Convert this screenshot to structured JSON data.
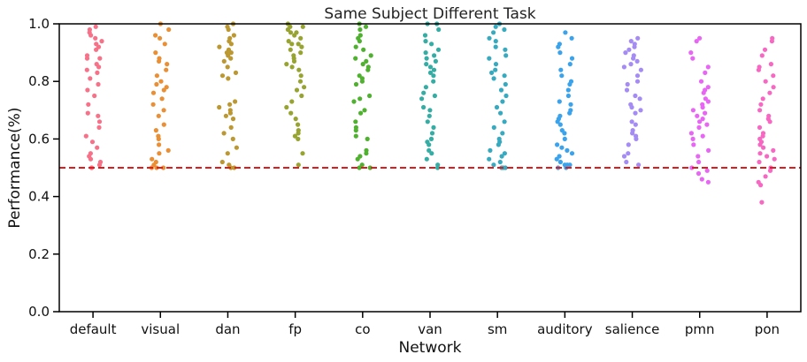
{
  "chart_data": {
    "type": "scatter",
    "title": "Same Subject Different Task",
    "xlabel": "Network",
    "ylabel": "Performance(%)",
    "ylim": [
      0.0,
      1.0
    ],
    "yticks": [
      "0.0",
      "0.2",
      "0.4",
      "0.6",
      "0.8",
      "1.0"
    ],
    "grid": false,
    "reference_line": {
      "y": 0.5,
      "color": "#e31a1c",
      "style": "dashed"
    },
    "categories": [
      "default",
      "visual",
      "dan",
      "fp",
      "co",
      "van",
      "sm",
      "auditory",
      "salience",
      "pmn",
      "pon"
    ],
    "colors": [
      "#f77189",
      "#e98f36",
      "#bb9832",
      "#97a431",
      "#50b131",
      "#36ada4",
      "#38aabf",
      "#3ba3ec",
      "#a48cf4",
      "#e866f4",
      "#f668c2"
    ],
    "series": [
      {
        "values": [
          0.99,
          0.97,
          0.95,
          0.94,
          0.93,
          0.91,
          0.89,
          0.88,
          0.86,
          0.85,
          0.83,
          0.81,
          0.79,
          0.77,
          0.75,
          0.72,
          0.69,
          0.68,
          0.66,
          0.64,
          0.61,
          0.59,
          0.57,
          0.55,
          0.54,
          0.53,
          0.52,
          0.51,
          0.5,
          0.5,
          0.92,
          0.88,
          0.84,
          0.98,
          0.96
        ]
      },
      {
        "values": [
          1.0,
          0.98,
          0.95,
          0.93,
          0.9,
          0.88,
          0.86,
          0.84,
          0.82,
          0.8,
          0.78,
          0.77,
          0.76,
          0.74,
          0.72,
          0.7,
          0.68,
          0.65,
          0.63,
          0.61,
          0.6,
          0.58,
          0.56,
          0.55,
          0.53,
          0.52,
          0.51,
          0.5,
          0.5,
          0.5,
          0.79,
          0.87,
          0.96
        ]
      },
      {
        "values": [
          1.0,
          0.99,
          0.98,
          0.96,
          0.95,
          0.93,
          0.92,
          0.91,
          0.9,
          0.89,
          0.88,
          0.87,
          0.85,
          0.83,
          0.82,
          0.81,
          0.73,
          0.72,
          0.71,
          0.7,
          0.69,
          0.68,
          0.67,
          0.64,
          0.62,
          0.6,
          0.57,
          0.55,
          0.52,
          0.51,
          0.5,
          0.5,
          0.94,
          0.9
        ]
      },
      {
        "values": [
          1.0,
          0.99,
          0.98,
          0.97,
          0.96,
          0.95,
          0.93,
          0.92,
          0.91,
          0.9,
          0.89,
          0.88,
          0.86,
          0.85,
          0.84,
          0.82,
          0.8,
          0.78,
          0.77,
          0.75,
          0.73,
          0.71,
          0.69,
          0.67,
          0.65,
          0.63,
          0.62,
          0.61,
          0.6,
          0.55,
          0.51,
          0.94,
          0.97,
          0.99,
          0.93,
          0.87
        ]
      },
      {
        "values": [
          1.0,
          0.99,
          0.98,
          0.96,
          0.95,
          0.94,
          0.92,
          0.91,
          0.89,
          0.87,
          0.86,
          0.85,
          0.84,
          0.82,
          0.81,
          0.8,
          0.79,
          0.75,
          0.74,
          0.73,
          0.7,
          0.69,
          0.66,
          0.64,
          0.63,
          0.61,
          0.6,
          0.56,
          0.55,
          0.54,
          0.53,
          0.51,
          0.5,
          0.5,
          0.88
        ]
      },
      {
        "values": [
          1.0,
          1.0,
          0.98,
          0.96,
          0.94,
          0.93,
          0.91,
          0.9,
          0.89,
          0.88,
          0.87,
          0.86,
          0.85,
          0.84,
          0.83,
          0.82,
          0.8,
          0.78,
          0.76,
          0.75,
          0.74,
          0.71,
          0.7,
          0.68,
          0.66,
          0.64,
          0.62,
          0.6,
          0.59,
          0.58,
          0.56,
          0.55,
          0.53,
          0.51,
          0.5
        ]
      },
      {
        "values": [
          1.0,
          0.99,
          0.98,
          0.97,
          0.95,
          0.94,
          0.92,
          0.91,
          0.89,
          0.88,
          0.86,
          0.84,
          0.83,
          0.82,
          0.81,
          0.79,
          0.77,
          0.75,
          0.73,
          0.71,
          0.69,
          0.66,
          0.64,
          0.62,
          0.6,
          0.59,
          0.58,
          0.56,
          0.55,
          0.54,
          0.53,
          0.52,
          0.51,
          0.5,
          0.5,
          0.5
        ]
      },
      {
        "values": [
          0.97,
          0.95,
          0.93,
          0.92,
          0.9,
          0.88,
          0.86,
          0.84,
          0.82,
          0.8,
          0.79,
          0.77,
          0.75,
          0.73,
          0.72,
          0.7,
          0.69,
          0.68,
          0.67,
          0.66,
          0.65,
          0.63,
          0.62,
          0.6,
          0.58,
          0.57,
          0.56,
          0.55,
          0.54,
          0.53,
          0.52,
          0.51,
          0.51,
          0.51,
          0.5,
          0.5
        ]
      },
      {
        "values": [
          0.95,
          0.94,
          0.93,
          0.92,
          0.91,
          0.9,
          0.89,
          0.88,
          0.87,
          0.86,
          0.85,
          0.84,
          0.82,
          0.8,
          0.79,
          0.77,
          0.75,
          0.74,
          0.72,
          0.71,
          0.7,
          0.69,
          0.66,
          0.65,
          0.63,
          0.62,
          0.61,
          0.6,
          0.58,
          0.55,
          0.54,
          0.52,
          0.51
        ]
      },
      {
        "values": [
          0.95,
          0.94,
          0.9,
          0.88,
          0.85,
          0.83,
          0.8,
          0.78,
          0.77,
          0.76,
          0.74,
          0.73,
          0.72,
          0.71,
          0.7,
          0.69,
          0.68,
          0.67,
          0.66,
          0.65,
          0.64,
          0.62,
          0.61,
          0.6,
          0.58,
          0.56,
          0.54,
          0.52,
          0.5,
          0.49,
          0.48,
          0.46,
          0.45
        ]
      },
      {
        "values": [
          0.95,
          0.94,
          0.91,
          0.89,
          0.86,
          0.85,
          0.84,
          0.82,
          0.8,
          0.78,
          0.76,
          0.74,
          0.72,
          0.7,
          0.68,
          0.67,
          0.66,
          0.64,
          0.62,
          0.61,
          0.6,
          0.59,
          0.58,
          0.57,
          0.56,
          0.55,
          0.54,
          0.53,
          0.52,
          0.5,
          0.49,
          0.47,
          0.45,
          0.44,
          0.38
        ]
      }
    ]
  }
}
